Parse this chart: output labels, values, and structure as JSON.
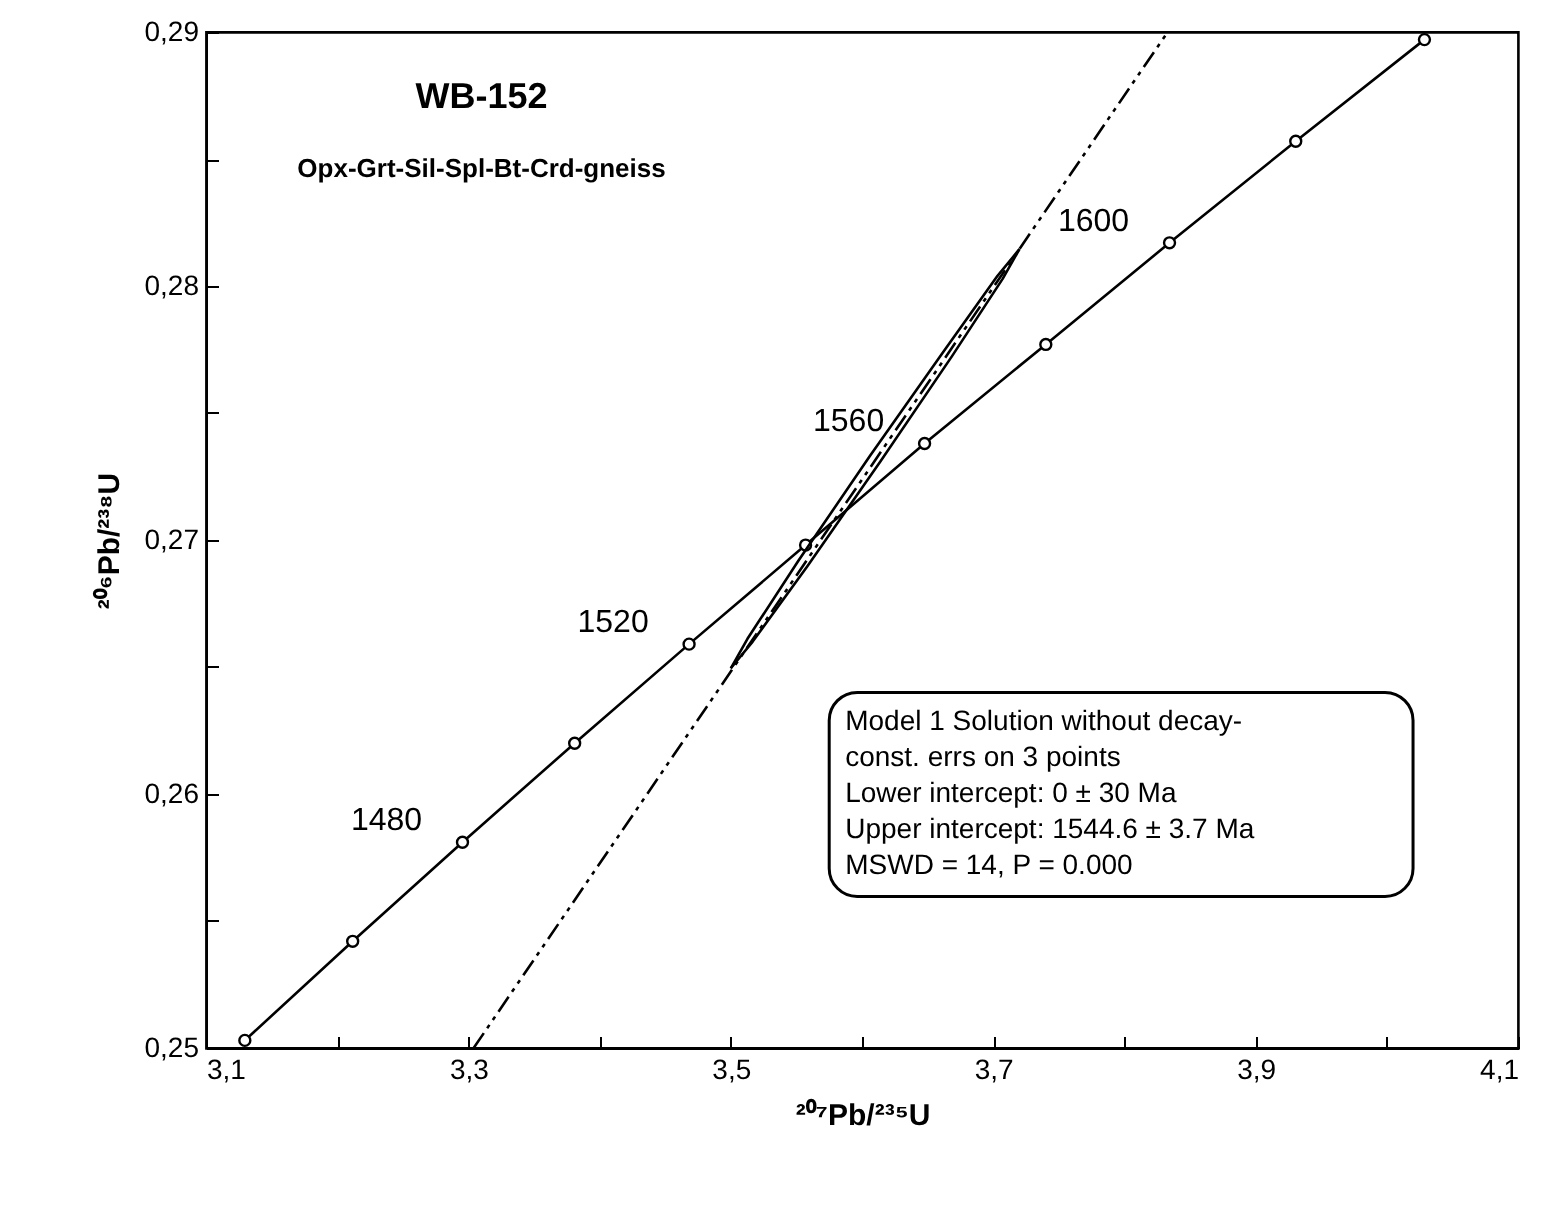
{
  "chart_data": {
    "type": "line",
    "title": "WB-152",
    "subtitle": "Opx-Grt-Sil-Spl-Bt-Crd-gneiss",
    "xlabel": "²⁰⁷Pb/²³⁵U",
    "ylabel": "²⁰⁶Pb/²³⁸U",
    "xlim": [
      3.1,
      4.1
    ],
    "ylim": [
      0.25,
      0.29
    ],
    "xticks": [
      {
        "value": 3.1,
        "label": "3,1"
      },
      {
        "value": 3.2,
        "label": null
      },
      {
        "value": 3.3,
        "label": "3,3"
      },
      {
        "value": 3.4,
        "label": null
      },
      {
        "value": 3.5,
        "label": "3,5"
      },
      {
        "value": 3.6,
        "label": null
      },
      {
        "value": 3.7,
        "label": "3,7"
      },
      {
        "value": 3.8,
        "label": null
      },
      {
        "value": 3.9,
        "label": "3,9"
      },
      {
        "value": 4.0,
        "label": null
      },
      {
        "value": 4.1,
        "label": "4,1"
      }
    ],
    "yticks": [
      {
        "value": 0.25,
        "label": "0,25"
      },
      {
        "value": 0.255,
        "label": null
      },
      {
        "value": 0.26,
        "label": "0,26"
      },
      {
        "value": 0.265,
        "label": null
      },
      {
        "value": 0.27,
        "label": "0,27"
      },
      {
        "value": 0.275,
        "label": null
      },
      {
        "value": 0.28,
        "label": "0,28"
      },
      {
        "value": 0.285,
        "label": null
      },
      {
        "value": 0.29,
        "label": "0,29"
      }
    ],
    "grid": false,
    "series": [
      {
        "type": "line",
        "color": "#000000",
        "marker": "circle",
        "line_style": "solid",
        "x": [
          3.1296,
          3.2118,
          3.2955,
          3.381,
          3.4682,
          3.557,
          3.6477,
          3.7401,
          3.8344,
          3.9306,
          4.0287
        ],
        "values": [
          0.2503,
          0.2542,
          0.2581,
          0.262,
          0.2659,
          0.2698,
          0.2738,
          0.2777,
          0.2817,
          0.2857,
          0.2897
        ]
      },
      {
        "type": "line",
        "color": "#000000",
        "marker": "none",
        "line_style": "dashed",
        "x": [
          3.304,
          3.833
        ],
        "values": [
          0.25,
          0.29
        ]
      },
      {
        "type": "line",
        "color": "#000000",
        "marker": "none",
        "line_style": "solid",
        "x": [
          3.5,
          3.5167,
          3.5585,
          3.614,
          3.6685,
          3.7073,
          3.72
        ],
        "values": [
          0.26495,
          0.266,
          0.26898,
          0.27309,
          0.27723,
          0.28029,
          0.28145
        ]
      },
      {
        "type": "line",
        "color": "#000000",
        "marker": "none",
        "line_style": "solid",
        "x": [
          3.5,
          3.5127,
          3.5515,
          3.606,
          3.6615,
          3.7033,
          3.72
        ],
        "values": [
          0.26495,
          0.26611,
          0.26918,
          0.27331,
          0.27737,
          0.2804,
          0.28145
        ]
      }
    ],
    "annotations": [
      {
        "text": "1480",
        "x": 3.2955,
        "y": 0.2581
      },
      {
        "text": "1520",
        "x": 3.4682,
        "y": 0.2659
      },
      {
        "text": "1560",
        "x": 3.6477,
        "y": 0.2738
      },
      {
        "text": "1600",
        "x": 3.8344,
        "y": 0.2817
      },
      "Model 1 Solution without decay-\nconst. errs on 3 points\nLower intercept: 0 ± 30 Ma\nUpper intercept: 1544.6 ± 3.7 Ma\nMSWD = 14, P = 0.000"
    ]
  }
}
